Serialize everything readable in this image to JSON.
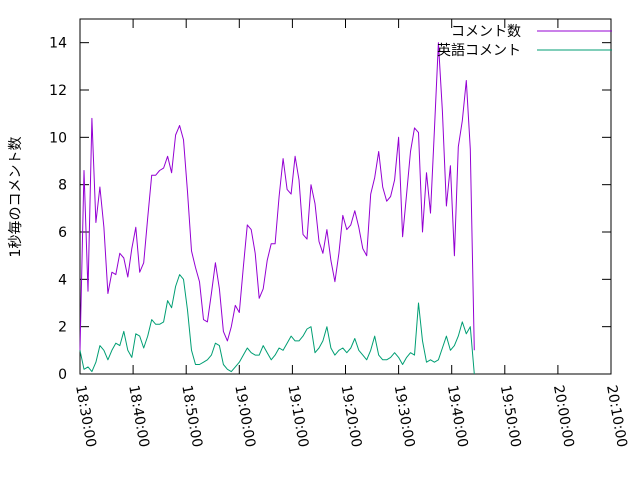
{
  "chart_data": {
    "type": "line",
    "title": "",
    "xlabel": "",
    "ylabel": "1秒毎のコメント数",
    "xlim": [
      "18:30:00",
      "20:10:00"
    ],
    "ylim": [
      0,
      15
    ],
    "x_tick_labels": [
      "18:30:00",
      "18:40:00",
      "18:50:00",
      "19:00:00",
      "19:10:00",
      "19:20:00",
      "19:30:00",
      "19:40:00",
      "19:50:00",
      "20:00:00",
      "20:10:00"
    ],
    "y_tick_labels": [
      "0",
      "2",
      "4",
      "6",
      "8",
      "10",
      "12",
      "14"
    ],
    "legend_position": "top-right",
    "grid": false,
    "series": [
      {
        "name": "コメント数",
        "color": "#9400d3",
        "points": [
          [
            "18:30:00",
            1.0
          ],
          [
            "18:30:45",
            8.6
          ],
          [
            "18:31:30",
            3.5
          ],
          [
            "18:32:15",
            10.8
          ],
          [
            "18:33:00",
            6.4
          ],
          [
            "18:33:45",
            7.9
          ],
          [
            "18:34:30",
            6.2
          ],
          [
            "18:35:15",
            3.4
          ],
          [
            "18:36:00",
            4.3
          ],
          [
            "18:36:45",
            4.2
          ],
          [
            "18:37:30",
            5.1
          ],
          [
            "18:38:15",
            4.9
          ],
          [
            "18:39:00",
            4.1
          ],
          [
            "18:39:45",
            5.3
          ],
          [
            "18:40:30",
            6.2
          ],
          [
            "18:41:15",
            4.3
          ],
          [
            "18:42:00",
            4.7
          ],
          [
            "18:42:45",
            6.6
          ],
          [
            "18:43:30",
            8.4
          ],
          [
            "18:44:15",
            8.4
          ],
          [
            "18:45:00",
            8.6
          ],
          [
            "18:45:45",
            8.7
          ],
          [
            "18:46:30",
            9.2
          ],
          [
            "18:47:15",
            8.5
          ],
          [
            "18:48:00",
            10.1
          ],
          [
            "18:48:45",
            10.5
          ],
          [
            "18:49:30",
            9.9
          ],
          [
            "18:50:15",
            7.7
          ],
          [
            "18:51:00",
            5.2
          ],
          [
            "18:51:45",
            4.5
          ],
          [
            "18:52:30",
            3.9
          ],
          [
            "18:53:15",
            2.3
          ],
          [
            "18:54:00",
            2.2
          ],
          [
            "18:54:45",
            3.4
          ],
          [
            "18:55:30",
            4.7
          ],
          [
            "18:56:15",
            3.6
          ],
          [
            "18:57:00",
            1.8
          ],
          [
            "18:57:45",
            1.4
          ],
          [
            "18:58:30",
            2.0
          ],
          [
            "18:59:15",
            2.9
          ],
          [
            "19:00:00",
            2.6
          ],
          [
            "19:00:45",
            4.5
          ],
          [
            "19:01:30",
            6.3
          ],
          [
            "19:02:15",
            6.1
          ],
          [
            "19:03:00",
            5.1
          ],
          [
            "19:03:45",
            3.2
          ],
          [
            "19:04:30",
            3.6
          ],
          [
            "19:05:15",
            4.8
          ],
          [
            "19:06:00",
            5.5
          ],
          [
            "19:06:45",
            5.5
          ],
          [
            "19:07:30",
            7.5
          ],
          [
            "19:08:15",
            9.1
          ],
          [
            "19:09:00",
            7.8
          ],
          [
            "19:09:45",
            7.6
          ],
          [
            "19:10:30",
            9.2
          ],
          [
            "19:11:15",
            8.2
          ],
          [
            "19:12:00",
            5.9
          ],
          [
            "19:12:45",
            5.7
          ],
          [
            "19:13:30",
            8.0
          ],
          [
            "19:14:15",
            7.2
          ],
          [
            "19:15:00",
            5.6
          ],
          [
            "19:15:45",
            5.1
          ],
          [
            "19:16:30",
            6.1
          ],
          [
            "19:17:15",
            4.8
          ],
          [
            "19:18:00",
            3.9
          ],
          [
            "19:18:45",
            5.1
          ],
          [
            "19:19:30",
            6.7
          ],
          [
            "19:20:15",
            6.1
          ],
          [
            "19:21:00",
            6.3
          ],
          [
            "19:21:45",
            6.9
          ],
          [
            "19:22:30",
            6.2
          ],
          [
            "19:23:15",
            5.3
          ],
          [
            "19:24:00",
            5.0
          ],
          [
            "19:24:45",
            7.6
          ],
          [
            "19:25:30",
            8.3
          ],
          [
            "19:26:15",
            9.4
          ],
          [
            "19:27:00",
            7.9
          ],
          [
            "19:27:45",
            7.3
          ],
          [
            "19:28:30",
            7.5
          ],
          [
            "19:29:15",
            8.2
          ],
          [
            "19:30:00",
            10.0
          ],
          [
            "19:30:45",
            5.8
          ],
          [
            "19:31:30",
            7.6
          ],
          [
            "19:32:15",
            9.4
          ],
          [
            "19:33:00",
            10.4
          ],
          [
            "19:33:45",
            10.2
          ],
          [
            "19:34:30",
            6.0
          ],
          [
            "19:35:15",
            8.5
          ],
          [
            "19:36:00",
            6.8
          ],
          [
            "19:36:45",
            10.3
          ],
          [
            "19:37:30",
            14.0
          ],
          [
            "19:38:15",
            11.1
          ],
          [
            "19:39:00",
            7.1
          ],
          [
            "19:39:45",
            8.8
          ],
          [
            "19:40:30",
            5.0
          ],
          [
            "19:41:15",
            9.6
          ],
          [
            "19:42:00",
            10.7
          ],
          [
            "19:42:45",
            12.4
          ],
          [
            "19:43:30",
            9.5
          ],
          [
            "19:44:15",
            1.0
          ]
        ]
      },
      {
        "name": "英語コメント",
        "color": "#009e73",
        "points": [
          [
            "18:30:00",
            1.0
          ],
          [
            "18:30:45",
            0.2
          ],
          [
            "18:31:30",
            0.3
          ],
          [
            "18:32:15",
            0.1
          ],
          [
            "18:33:00",
            0.5
          ],
          [
            "18:33:45",
            1.2
          ],
          [
            "18:34:30",
            1.0
          ],
          [
            "18:35:15",
            0.6
          ],
          [
            "18:36:00",
            1.0
          ],
          [
            "18:36:45",
            1.3
          ],
          [
            "18:37:30",
            1.2
          ],
          [
            "18:38:15",
            1.8
          ],
          [
            "18:39:00",
            1.0
          ],
          [
            "18:39:45",
            0.7
          ],
          [
            "18:40:30",
            1.7
          ],
          [
            "18:41:15",
            1.6
          ],
          [
            "18:42:00",
            1.1
          ],
          [
            "18:42:45",
            1.6
          ],
          [
            "18:43:30",
            2.3
          ],
          [
            "18:44:15",
            2.1
          ],
          [
            "18:45:00",
            2.1
          ],
          [
            "18:45:45",
            2.2
          ],
          [
            "18:46:30",
            3.1
          ],
          [
            "18:47:15",
            2.8
          ],
          [
            "18:48:00",
            3.7
          ],
          [
            "18:48:45",
            4.2
          ],
          [
            "18:49:30",
            4.0
          ],
          [
            "18:50:15",
            2.7
          ],
          [
            "18:51:00",
            1.0
          ],
          [
            "18:51:45",
            0.4
          ],
          [
            "18:52:30",
            0.4
          ],
          [
            "18:53:15",
            0.5
          ],
          [
            "18:54:00",
            0.6
          ],
          [
            "18:54:45",
            0.8
          ],
          [
            "18:55:30",
            1.3
          ],
          [
            "18:56:15",
            1.2
          ],
          [
            "18:57:00",
            0.4
          ],
          [
            "18:57:45",
            0.2
          ],
          [
            "18:58:30",
            0.1
          ],
          [
            "18:59:15",
            0.3
          ],
          [
            "19:00:00",
            0.5
          ],
          [
            "19:00:45",
            0.8
          ],
          [
            "19:01:30",
            1.1
          ],
          [
            "19:02:15",
            0.9
          ],
          [
            "19:03:00",
            0.8
          ],
          [
            "19:03:45",
            0.8
          ],
          [
            "19:04:30",
            1.2
          ],
          [
            "19:05:15",
            0.9
          ],
          [
            "19:06:00",
            0.6
          ],
          [
            "19:06:45",
            0.8
          ],
          [
            "19:07:30",
            1.1
          ],
          [
            "19:08:15",
            1.0
          ],
          [
            "19:09:00",
            1.3
          ],
          [
            "19:09:45",
            1.6
          ],
          [
            "19:10:30",
            1.4
          ],
          [
            "19:11:15",
            1.4
          ],
          [
            "19:12:00",
            1.6
          ],
          [
            "19:12:45",
            1.9
          ],
          [
            "19:13:30",
            2.0
          ],
          [
            "19:14:15",
            0.9
          ],
          [
            "19:15:00",
            1.1
          ],
          [
            "19:15:45",
            1.4
          ],
          [
            "19:16:30",
            2.0
          ],
          [
            "19:17:15",
            1.1
          ],
          [
            "19:18:00",
            0.8
          ],
          [
            "19:18:45",
            1.0
          ],
          [
            "19:19:30",
            1.1
          ],
          [
            "19:20:15",
            0.9
          ],
          [
            "19:21:00",
            1.1
          ],
          [
            "19:21:45",
            1.5
          ],
          [
            "19:22:30",
            1.0
          ],
          [
            "19:23:15",
            0.8
          ],
          [
            "19:24:00",
            0.6
          ],
          [
            "19:24:45",
            1.0
          ],
          [
            "19:25:30",
            1.6
          ],
          [
            "19:26:15",
            0.8
          ],
          [
            "19:27:00",
            0.6
          ],
          [
            "19:27:45",
            0.6
          ],
          [
            "19:28:30",
            0.7
          ],
          [
            "19:29:15",
            0.9
          ],
          [
            "19:30:00",
            0.7
          ],
          [
            "19:30:45",
            0.4
          ],
          [
            "19:31:30",
            0.7
          ],
          [
            "19:32:15",
            0.9
          ],
          [
            "19:33:00",
            0.8
          ],
          [
            "19:33:45",
            3.0
          ],
          [
            "19:34:30",
            1.4
          ],
          [
            "19:35:15",
            0.5
          ],
          [
            "19:36:00",
            0.6
          ],
          [
            "19:36:45",
            0.5
          ],
          [
            "19:37:30",
            0.6
          ],
          [
            "19:38:15",
            1.1
          ],
          [
            "19:39:00",
            1.6
          ],
          [
            "19:39:45",
            1.0
          ],
          [
            "19:40:30",
            1.2
          ],
          [
            "19:41:15",
            1.6
          ],
          [
            "19:42:00",
            2.2
          ],
          [
            "19:42:45",
            1.7
          ],
          [
            "19:43:30",
            2.0
          ],
          [
            "19:44:15",
            0.0
          ]
        ]
      }
    ]
  }
}
